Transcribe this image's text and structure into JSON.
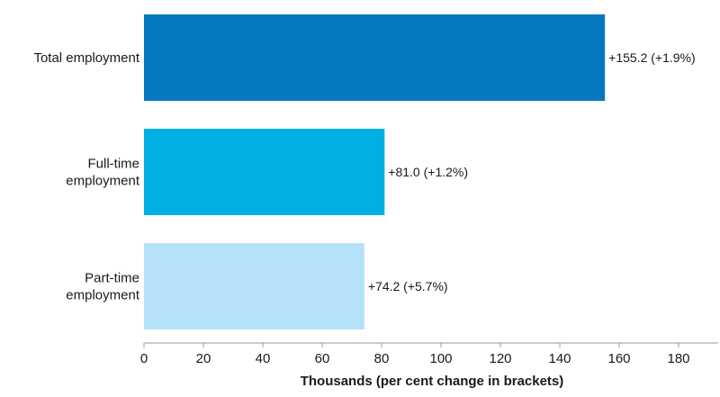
{
  "chart_data": {
    "type": "bar",
    "orientation": "horizontal",
    "categories": [
      [
        "Total employment"
      ],
      [
        "Full-time",
        "employment"
      ],
      [
        "Part-time",
        "employment"
      ]
    ],
    "values": [
      155.2,
      81.0,
      74.2
    ],
    "value_labels": [
      "+155.2 (+1.9%)",
      "+81.0 (+1.2%)",
      "+74.2 (+5.7%)"
    ],
    "colors": [
      "#0479bf",
      "#00b0e2",
      "#b5e2f9"
    ],
    "xlabel": "Thousands (per cent change in brackets)",
    "xlim": [
      0,
      190
    ],
    "xticks": [
      "0",
      "20",
      "40",
      "60",
      "80",
      "100",
      "120",
      "140",
      "160",
      "180"
    ],
    "grid": false
  }
}
